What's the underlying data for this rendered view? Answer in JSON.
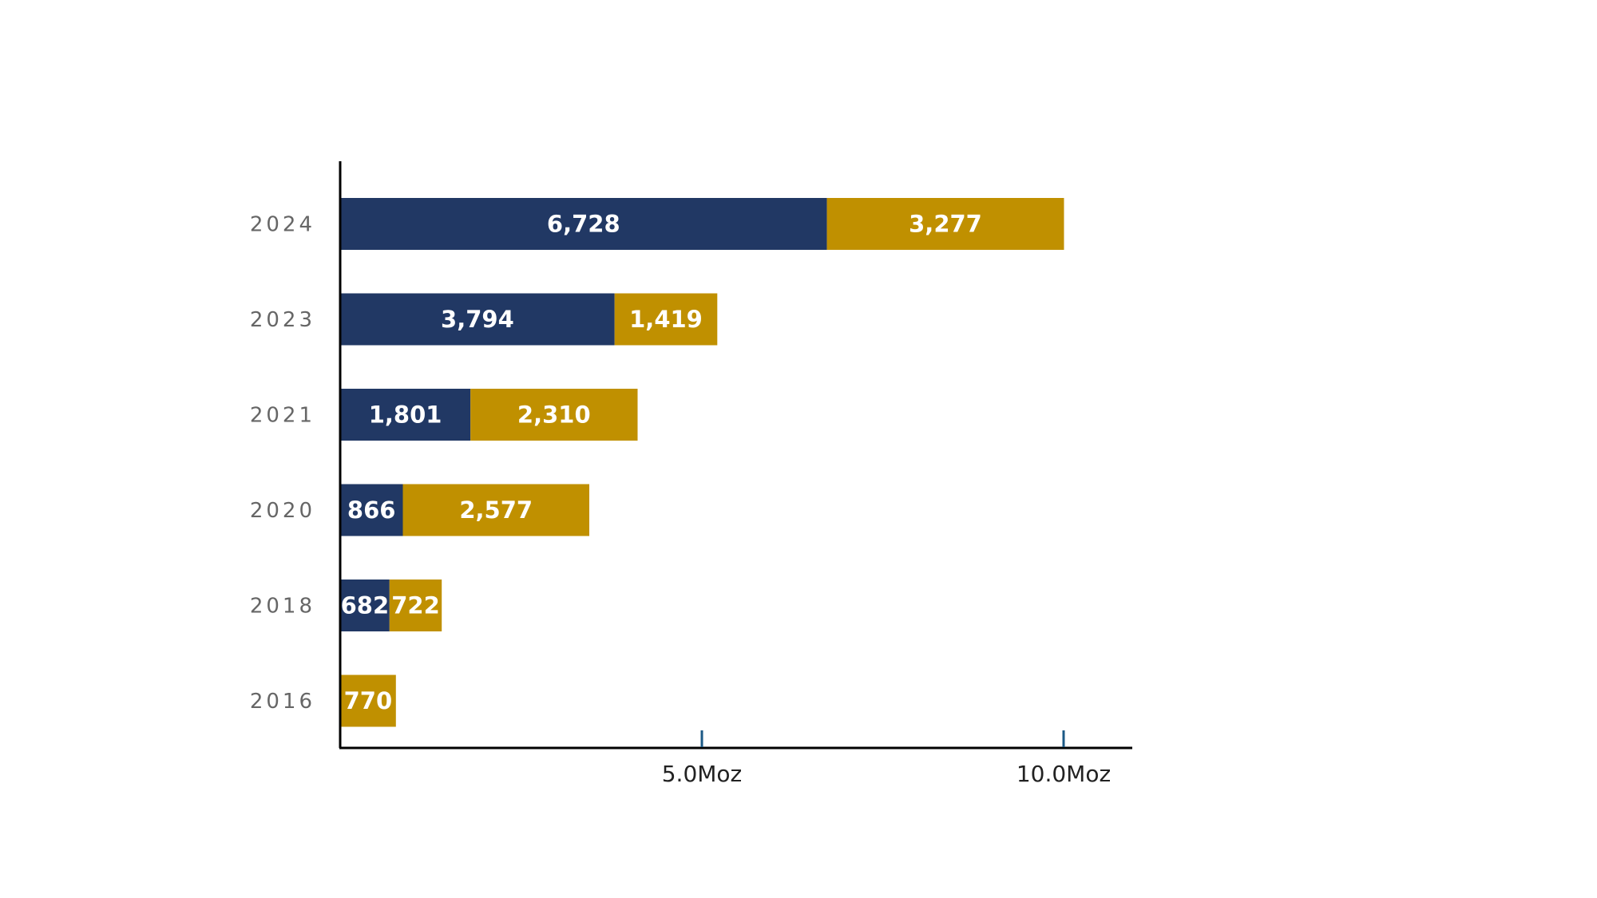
{
  "chart_data": {
    "type": "bar",
    "orientation": "horizontal",
    "stacked": true,
    "categories": [
      "2024",
      "2023",
      "2021",
      "2020",
      "2018",
      "2016"
    ],
    "series": [
      {
        "values": [
          6728,
          3794,
          1801,
          866,
          682,
          0
        ],
        "labels": [
          "6,728",
          "3,794",
          "1,801",
          "866",
          "682",
          ""
        ]
      },
      {
        "values": [
          3277,
          1419,
          2310,
          2577,
          722,
          770
        ],
        "labels": [
          "3,277",
          "1,419",
          "2,310",
          "2,577",
          "722",
          "770"
        ]
      }
    ],
    "colors": [
      "#213864",
      "#C09000"
    ],
    "xticks": [
      {
        "value": 5000,
        "label": "5.0Moz"
      },
      {
        "value": 10000,
        "label": "10.0Moz"
      }
    ],
    "xlim": [
      0,
      10600
    ],
    "title": "",
    "xlabel": "",
    "ylabel": "",
    "grid": false,
    "legend": "none"
  }
}
